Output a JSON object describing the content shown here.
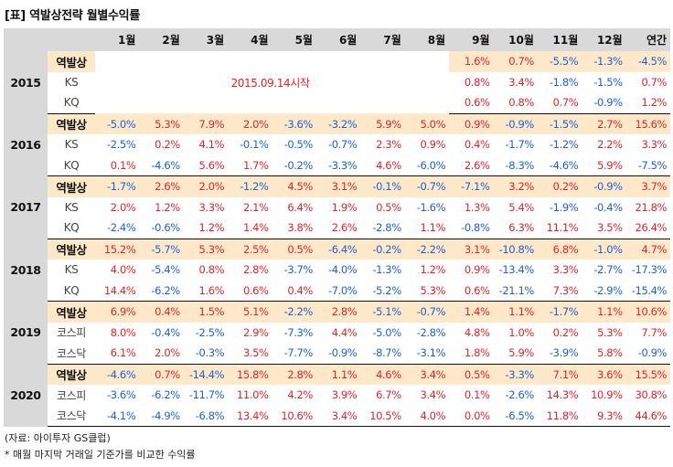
{
  "title": "[표] 역발상전략 월별수익률",
  "headers": [
    "1월",
    "2월",
    "3월",
    "4월",
    "5월",
    "6월",
    "7월",
    "8월",
    "9월",
    "10월",
    "11월",
    "12월",
    "연간"
  ],
  "notice": "2015.09.14시작",
  "groups": [
    {
      "year": "2015",
      "rows": [
        {
          "label": "역발상",
          "main": true,
          "values": [
            "",
            "",
            "",
            "",
            "",
            "",
            "",
            "",
            "1.6%",
            "0.7%",
            "-5.5%",
            "-1.3%",
            "-4.5%"
          ]
        },
        {
          "label": "KS",
          "main": false,
          "values": [
            "",
            "",
            "",
            "",
            "",
            "",
            "",
            "",
            "0.8%",
            "3.4%",
            "-1.8%",
            "-1.5%",
            "0.7%"
          ]
        },
        {
          "label": "KQ",
          "main": false,
          "values": [
            "",
            "",
            "",
            "",
            "",
            "",
            "",
            "",
            "0.6%",
            "0.8%",
            "0.7%",
            "-0.9%",
            "1.2%"
          ]
        }
      ]
    },
    {
      "year": "2016",
      "rows": [
        {
          "label": "역발상",
          "main": true,
          "values": [
            "-5.0%",
            "5.3%",
            "7.9%",
            "2.0%",
            "-3.6%",
            "-3.2%",
            "5.9%",
            "5.0%",
            "0.9%",
            "-0.9%",
            "-1.5%",
            "2.7%",
            "15.6%"
          ]
        },
        {
          "label": "KS",
          "main": false,
          "values": [
            "-2.5%",
            "0.2%",
            "4.1%",
            "-0.1%",
            "-0.5%",
            "-0.7%",
            "2.3%",
            "0.9%",
            "0.4%",
            "-1.7%",
            "-1.2%",
            "2.2%",
            "3.3%"
          ]
        },
        {
          "label": "KQ",
          "main": false,
          "values": [
            "0.1%",
            "-4.6%",
            "5.6%",
            "1.7%",
            "-0.2%",
            "-3.3%",
            "4.6%",
            "-6.0%",
            "2.6%",
            "-8.3%",
            "-4.6%",
            "5.9%",
            "-7.5%"
          ]
        }
      ]
    },
    {
      "year": "2017",
      "rows": [
        {
          "label": "역발상",
          "main": true,
          "values": [
            "-1.7%",
            "2.6%",
            "2.0%",
            "-1.2%",
            "4.5%",
            "3.1%",
            "-0.1%",
            "-0.7%",
            "-7.1%",
            "3.2%",
            "0.2%",
            "-0.9%",
            "3.7%"
          ]
        },
        {
          "label": "KS",
          "main": false,
          "values": [
            "2.0%",
            "1.2%",
            "3.3%",
            "2.1%",
            "6.4%",
            "1.9%",
            "0.5%",
            "-1.6%",
            "1.3%",
            "5.4%",
            "-1.9%",
            "-0.4%",
            "21.8%"
          ]
        },
        {
          "label": "KQ",
          "main": false,
          "values": [
            "-2.4%",
            "-0.6%",
            "1.2%",
            "1.4%",
            "3.8%",
            "2.6%",
            "-2.8%",
            "1.1%",
            "-0.8%",
            "6.3%",
            "11.1%",
            "3.5%",
            "26.4%"
          ]
        }
      ]
    },
    {
      "year": "2018",
      "rows": [
        {
          "label": "역발상",
          "main": true,
          "values": [
            "15.2%",
            "-5.7%",
            "5.3%",
            "2.5%",
            "0.5%",
            "-6.4%",
            "-0.2%",
            "-2.2%",
            "3.1%",
            "-10.8%",
            "6.8%",
            "-1.0%",
            "4.7%"
          ]
        },
        {
          "label": "KS",
          "main": false,
          "values": [
            "4.0%",
            "-5.4%",
            "0.8%",
            "2.8%",
            "-3.7%",
            "-4.0%",
            "-1.3%",
            "1.2%",
            "0.9%",
            "-13.4%",
            "3.3%",
            "-2.7%",
            "-17.3%"
          ]
        },
        {
          "label": "KQ",
          "main": false,
          "values": [
            "14.4%",
            "-6.2%",
            "1.6%",
            "0.6%",
            "0.4%",
            "-7.0%",
            "-5.2%",
            "5.3%",
            "0.6%",
            "-21.1%",
            "7.3%",
            "-2.9%",
            "-15.4%"
          ]
        }
      ]
    },
    {
      "year": "2019",
      "rows": [
        {
          "label": "역발상",
          "main": true,
          "values": [
            "6.9%",
            "0.4%",
            "1.5%",
            "5.1%",
            "-2.2%",
            "2.8%",
            "-5.1%",
            "-0.7%",
            "1.4%",
            "1.1%",
            "-1.7%",
            "1.1%",
            "10.6%"
          ]
        },
        {
          "label": "코스피",
          "main": false,
          "values": [
            "8.0%",
            "-0.4%",
            "-2.5%",
            "2.9%",
            "-7.3%",
            "4.4%",
            "-5.0%",
            "-2.8%",
            "4.8%",
            "1.0%",
            "0.2%",
            "5.3%",
            "7.7%"
          ]
        },
        {
          "label": "코스닥",
          "main": false,
          "values": [
            "6.1%",
            "2.0%",
            "-0.3%",
            "3.5%",
            "-7.7%",
            "-0.9%",
            "-8.7%",
            "-3.1%",
            "1.8%",
            "5.9%",
            "-3.9%",
            "5.8%",
            "-0.9%"
          ]
        }
      ]
    },
    {
      "year": "2020",
      "rows": [
        {
          "label": "역발상",
          "main": true,
          "values": [
            "-4.6%",
            "0.7%",
            "-14.4%",
            "15.8%",
            "2.8%",
            "1.1%",
            "4.6%",
            "3.4%",
            "0.5%",
            "-3.3%",
            "7.1%",
            "3.6%",
            "15.5%"
          ]
        },
        {
          "label": "코스피",
          "main": false,
          "values": [
            "-3.6%",
            "-6.2%",
            "-11.7%",
            "11.0%",
            "4.2%",
            "3.9%",
            "6.7%",
            "3.4%",
            "0.1%",
            "-2.6%",
            "14.3%",
            "10.9%",
            "30.8%"
          ]
        },
        {
          "label": "코스닥",
          "main": false,
          "values": [
            "-4.1%",
            "-4.9%",
            "-6.8%",
            "13.4%",
            "10.6%",
            "3.4%",
            "10.5%",
            "4.0%",
            "0.0%",
            "-6.5%",
            "11.8%",
            "9.3%",
            "44.6%"
          ]
        }
      ]
    }
  ],
  "source": "(자료: 아이투자 GS클럽)",
  "footnote": "* 매월 마지막 거래일 기준가를 비교한 수익률"
}
